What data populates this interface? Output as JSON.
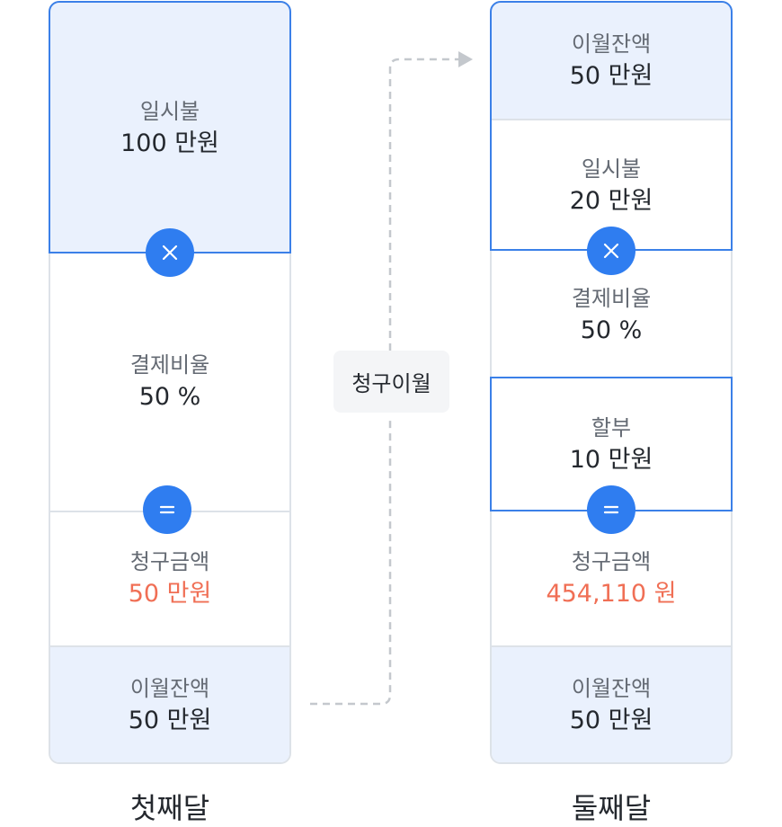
{
  "columns": [
    {
      "title": "첫째달",
      "segments": [
        {
          "label": "일시불",
          "value": "100 만원"
        },
        {
          "label": "결제비율",
          "value": "50 %"
        },
        {
          "label": "청구금액",
          "value": "50 만원"
        },
        {
          "label": "이월잔액",
          "value": "50 만원"
        }
      ]
    },
    {
      "title": "둘째달",
      "segments": [
        {
          "label": "이월잔액",
          "value": "50 만원"
        },
        {
          "label": "일시불",
          "value": "20 만원"
        },
        {
          "label": "결제비율",
          "value": "50 %"
        },
        {
          "label": "할부",
          "value": "10 만원"
        },
        {
          "label": "청구금액",
          "value": "454,110 원"
        },
        {
          "label": "이월잔액",
          "value": "50 만원"
        }
      ]
    }
  ],
  "connector": {
    "label": "청구이월"
  },
  "operators": {
    "multiply": "×",
    "equals": "="
  },
  "colors": {
    "accent": "#3b80e8",
    "operator_fill": "#2f7df0",
    "highlight_value": "#f06f55",
    "tint": "#eaf1fd",
    "border": "#dde2e8"
  }
}
